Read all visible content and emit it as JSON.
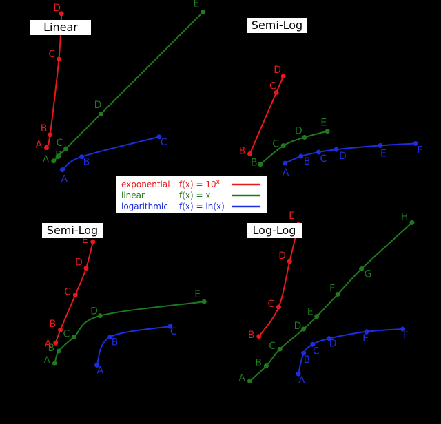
{
  "colors": {
    "exponential": "#e8191c",
    "linear": "#1f7a1f",
    "logarithmic": "#1d2ee0",
    "background": "#000000",
    "label_box": "#ffffff"
  },
  "legend": {
    "placement": "center",
    "entries": [
      {
        "key": "exponential",
        "name": "exponential",
        "formula": "f(x) = 10",
        "superscript": "x"
      },
      {
        "key": "linear",
        "name": "linear",
        "formula": "f(x) = x",
        "superscript": ""
      },
      {
        "key": "logarithmic",
        "name": "logarithmic",
        "formula": "f(x) = ln(x)",
        "superscript": ""
      }
    ]
  },
  "chart_data": [
    {
      "type": "line",
      "title": "Linear",
      "xscale": "linear",
      "yscale": "linear",
      "xlim": [
        0,
        10
      ],
      "ylim": [
        -1,
        9.3
      ],
      "series": [
        {
          "key": "exponential",
          "name": "exponential",
          "points": [
            {
              "label": "A",
              "x": 0.1,
              "y": 1.259
            },
            {
              "label": "B",
              "x": 0.3,
              "y": 1.995
            },
            {
              "label": "C",
              "x": 0.8,
              "y": 6.31
            },
            {
              "label": "D",
              "x": 0.95,
              "y": 8.913
            }
          ]
        },
        {
          "key": "linear",
          "name": "linear",
          "points": [
            {
              "label": "A",
              "x": 0.5,
              "y": 0.5
            },
            {
              "label": "B",
              "x": 0.75,
              "y": 0.75
            },
            {
              "label": "C",
              "x": 1.2,
              "y": 1.2
            },
            {
              "label": "D",
              "x": 3.2,
              "y": 3.2
            },
            {
              "label": "E",
              "x": 9.0,
              "y": 9.0
            }
          ]
        },
        {
          "key": "logarithmic",
          "name": "logarithmic",
          "points": [
            {
              "label": "A",
              "x": 1.0,
              "y": 0.0
            },
            {
              "label": "B",
              "x": 2.1,
              "y": 0.742
            },
            {
              "label": "C",
              "x": 6.5,
              "y": 1.872
            }
          ]
        }
      ]
    },
    {
      "type": "line",
      "title": "Semi-Log",
      "xscale": "linear",
      "yscale": "log",
      "xlim": [
        0,
        10
      ],
      "ylim": [
        0.45,
        5000
      ],
      "series": [
        {
          "key": "exponential",
          "name": "exponential",
          "points": [
            {
              "label": "B",
              "x": 0.1,
              "y": 1.259
            },
            {
              "label": "C",
              "x": 1.6,
              "y": 39.8
            },
            {
              "label": "D",
              "x": 2.0,
              "y": 100
            }
          ]
        },
        {
          "key": "linear",
          "name": "linear",
          "points": [
            {
              "label": "B",
              "x": 0.7,
              "y": 0.7
            },
            {
              "label": "C",
              "x": 2.0,
              "y": 2
            },
            {
              "label": "D",
              "x": 3.2,
              "y": 3.2
            },
            {
              "label": "E",
              "x": 4.5,
              "y": 4.5
            }
          ]
        },
        {
          "key": "logarithmic",
          "name": "logarithmic",
          "points": [
            {
              "label": "A",
              "x": 2.1,
              "y": 0.742
            },
            {
              "label": "B",
              "x": 3.0,
              "y": 1.099
            },
            {
              "label": "C",
              "x": 4.0,
              "y": 1.386
            },
            {
              "label": "D",
              "x": 5.0,
              "y": 1.609
            },
            {
              "label": "E",
              "x": 7.5,
              "y": 2.015
            },
            {
              "label": "F",
              "x": 9.5,
              "y": 2.251
            }
          ]
        }
      ]
    },
    {
      "type": "line",
      "title": "Semi-Log",
      "xscale": "log",
      "yscale": "linear",
      "xlim": [
        0.045,
        1000
      ],
      "ylim": [
        -1,
        9
      ],
      "series": [
        {
          "key": "exponential",
          "name": "exponential",
          "points": [
            {
              "label": "A",
              "x": 0.1,
              "y": 1.259
            },
            {
              "label": "B",
              "x": 0.13,
              "y": 2.0
            },
            {
              "label": "C",
              "x": 0.3,
              "y": 3.981
            },
            {
              "label": "D",
              "x": 0.55,
              "y": 5.5
            },
            {
              "label": "E",
              "x": 0.8,
              "y": 7.0
            }
          ]
        },
        {
          "key": "linear",
          "name": "linear",
          "points": [
            {
              "label": "A",
              "x": 0.095,
              "y": 0.095
            },
            {
              "label": "B",
              "x": 0.12,
              "y": 0.8
            },
            {
              "label": "C",
              "x": 0.28,
              "y": 1.6
            },
            {
              "label": "D",
              "x": 1.2,
              "y": 2.8
            },
            {
              "label": "E",
              "x": 400,
              "y": 3.6
            }
          ]
        },
        {
          "key": "logarithmic",
          "name": "logarithmic",
          "points": [
            {
              "label": "A",
              "x": 1.0,
              "y": 0.0
            },
            {
              "label": "B",
              "x": 2.1,
              "y": 1.6
            },
            {
              "label": "C",
              "x": 60,
              "y": 2.2
            }
          ]
        }
      ]
    },
    {
      "type": "line",
      "title": "Log-Log",
      "xscale": "log",
      "yscale": "log",
      "xlim": [
        0.045,
        1000
      ],
      "ylim": [
        0.08,
        1000
      ],
      "series": [
        {
          "key": "exponential",
          "name": "exponential",
          "points": [
            {
              "label": "B",
              "x": 0.1,
              "y": 1.0
            },
            {
              "label": "C",
              "x": 0.3,
              "y": 5.0
            },
            {
              "label": "D",
              "x": 0.55,
              "y": 60
            },
            {
              "label": "E",
              "x": 0.9,
              "y": 450
            }
          ]
        },
        {
          "key": "linear",
          "name": "linear",
          "points": [
            {
              "label": "A",
              "x": 0.06,
              "y": 0.088
            },
            {
              "label": "B",
              "x": 0.15,
              "y": 0.2
            },
            {
              "label": "C",
              "x": 0.32,
              "y": 0.5
            },
            {
              "label": "D",
              "x": 1.2,
              "y": 1.5
            },
            {
              "label": "E",
              "x": 2.5,
              "y": 3.0
            },
            {
              "label": "F",
              "x": 8.0,
              "y": 10
            },
            {
              "label": "G",
              "x": 30,
              "y": 40
            },
            {
              "label": "H",
              "x": 500,
              "y": 500
            }
          ]
        },
        {
          "key": "logarithmic",
          "name": "logarithmic",
          "points": [
            {
              "label": "A",
              "x": 0.9,
              "y": 0.13
            },
            {
              "label": "B",
              "x": 1.2,
              "y": 0.4
            },
            {
              "label": "C",
              "x": 2.0,
              "y": 0.65
            },
            {
              "label": "D",
              "x": 5.0,
              "y": 0.9
            },
            {
              "label": "E",
              "x": 40,
              "y": 1.3
            },
            {
              "label": "F",
              "x": 300,
              "y": 1.5
            }
          ]
        }
      ]
    }
  ]
}
